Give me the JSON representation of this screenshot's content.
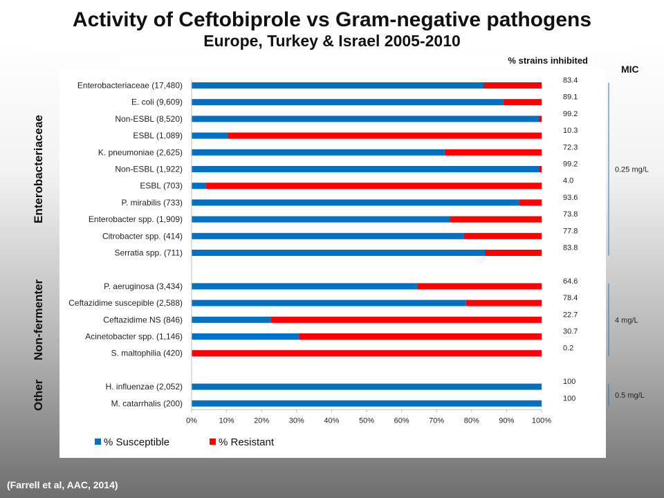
{
  "title": "Activity of Ceftobiprole vs Gram-negative pathogens",
  "subtitle": "Europe, Turkey & Israel 2005-2010",
  "pct_header": "% strains inhibited",
  "mic_header": "MIC",
  "source": "(Farrell et al, AAC, 2014)",
  "groups": [
    {
      "label": "Enterobacteriaceae",
      "rows": [
        0,
        10
      ],
      "mic": "0.25 mg/L"
    },
    {
      "label": "Non-fermenter",
      "rows": [
        11,
        15
      ],
      "mic": "4 mg/L"
    },
    {
      "label": "Other",
      "rows": [
        16,
        17
      ],
      "mic": "0.5 mg/L"
    }
  ],
  "colors": {
    "susceptible": "#0070C0",
    "resistant": "#FF0000"
  },
  "chart_data": {
    "type": "bar",
    "orientation": "horizontal",
    "stacked": true,
    "categories": [
      "Enterobacteriaceae (17,480)",
      "E. coli (9,609)",
      "Non-ESBL (8,520)",
      "ESBL (1,089)",
      "K. pneumoniae (2,625)",
      "Non-ESBL (1,922)",
      "ESBL (703)",
      "P. mirabilis (733)",
      "Enterobacter spp. (1,909)",
      "Citrobacter spp. (414)",
      "Serratia spp. (711)",
      "P. aeruginosa (3,434)",
      "Ceftazidime suscepible (2,588)",
      "Ceftazidime NS (846)",
      "Acinetobacter spp. (1,146)",
      "S. maltophilia (420)",
      "H. influenzae (2,052)",
      "M. catarrhalis (200)"
    ],
    "series": [
      {
        "name": "% Susceptible",
        "values": [
          83.4,
          89.1,
          99.2,
          10.3,
          72.3,
          99.2,
          4.0,
          93.6,
          73.8,
          77.8,
          83.8,
          64.6,
          78.4,
          22.7,
          30.7,
          0.2,
          100,
          100
        ]
      },
      {
        "name": "% Resistant",
        "values": [
          16.6,
          10.9,
          0.8,
          89.7,
          27.7,
          0.8,
          96.0,
          6.4,
          26.2,
          22.2,
          16.2,
          35.4,
          21.6,
          77.3,
          69.3,
          99.8,
          0,
          0
        ]
      }
    ],
    "value_labels": [
      "83.4",
      "89.1",
      "99.2",
      "10.3",
      "72.3",
      "99.2",
      "4.0",
      "93.6",
      "73.8",
      "77.8",
      "83.8",
      "64.6",
      "78.4",
      "22.7",
      "30.7",
      "0.2",
      "100",
      "100"
    ],
    "xlim": [
      0,
      100
    ],
    "x_ticks": [
      "0%",
      "10%",
      "20%",
      "30%",
      "40%",
      "50%",
      "60%",
      "70%",
      "80%",
      "90%",
      "100%"
    ],
    "legend": {
      "position": "bottom-left",
      "entries": [
        "% Susceptible",
        "% Resistant"
      ]
    },
    "grid": false
  }
}
